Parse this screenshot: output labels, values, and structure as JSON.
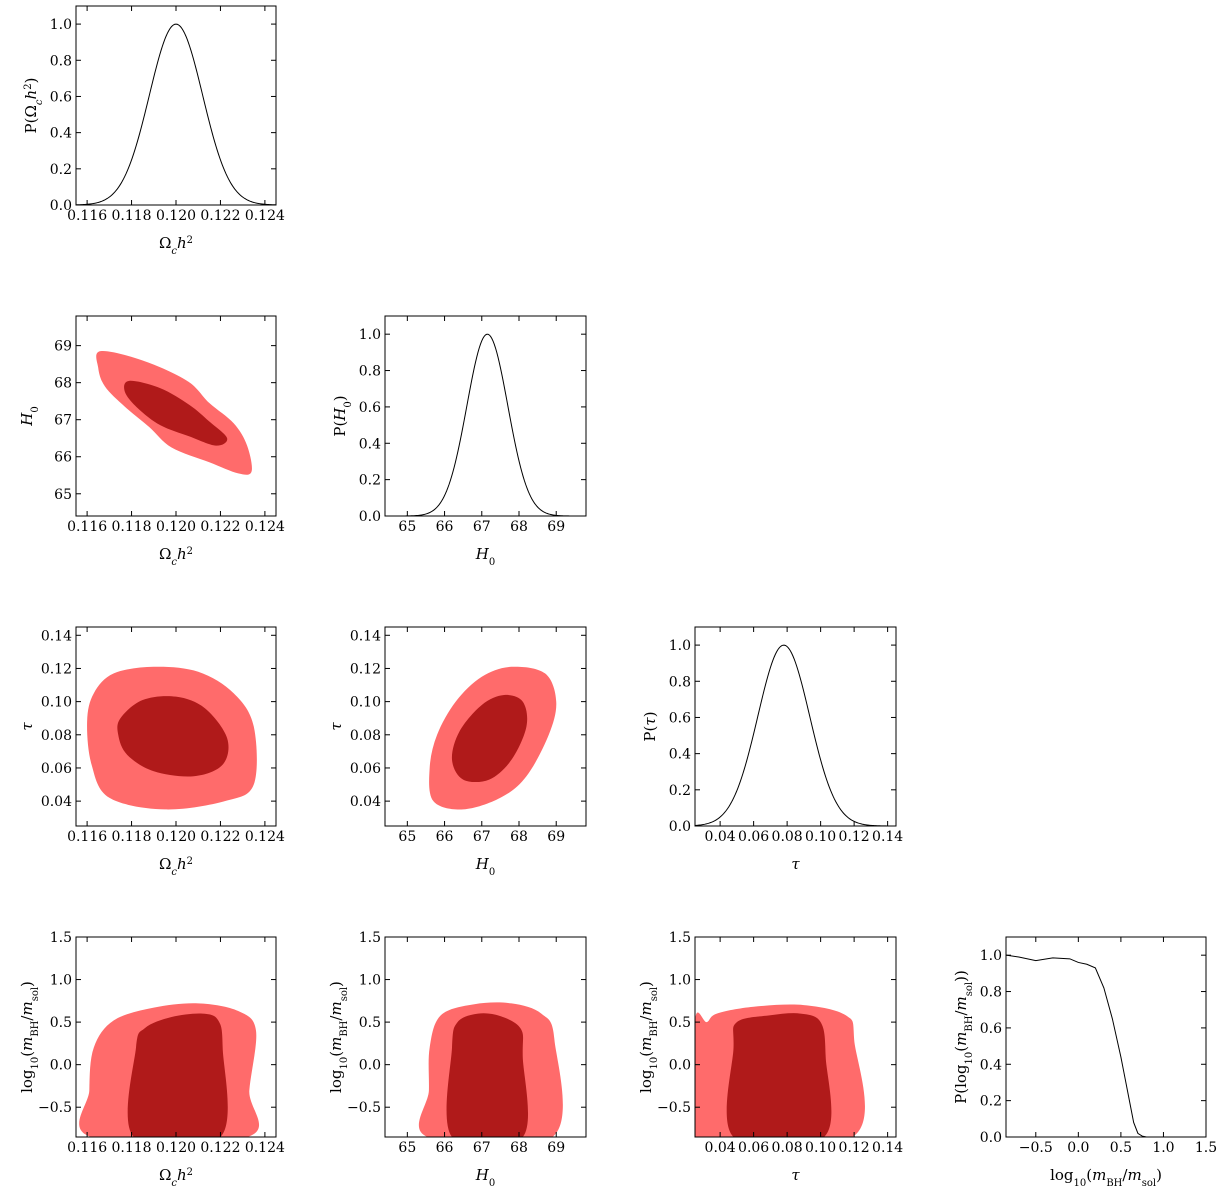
{
  "colors": {
    "sigma2": "#ff6b6b",
    "sigma1": "#b01a1a",
    "line": "#000000"
  },
  "params": {
    "omch2": {
      "label_html": "Ω<tspan font-style='italic'>c</tspan>",
      "range": [
        0.1155,
        0.1245
      ],
      "ticks": [
        0.116,
        0.118,
        0.12,
        0.122,
        0.124
      ],
      "tick_labels": [
        "0.116",
        "0.118",
        "0.120",
        "0.122",
        "0.124"
      ]
    },
    "H0": {
      "range": [
        64.4,
        69.8
      ],
      "ticks": [
        65,
        66,
        67,
        68,
        69
      ],
      "tick_labels": [
        "65",
        "66",
        "67",
        "68",
        "69"
      ]
    },
    "tau": {
      "range": [
        0.025,
        0.145
      ],
      "ticks": [
        0.04,
        0.06,
        0.08,
        0.1,
        0.12,
        0.14
      ],
      "tick_labels": [
        "0.04",
        "0.06",
        "0.08",
        "0.10",
        "0.12",
        "0.14"
      ]
    },
    "logm": {
      "range": [
        -0.85,
        1.5
      ],
      "ticks": [
        -0.5,
        0,
        0.5,
        1,
        1.5
      ],
      "tick_labels": [
        "−0.5",
        "0.0",
        "0.5",
        "1.0",
        "1.5"
      ]
    }
  },
  "labels": {
    "omch2": "Ωch2",
    "H0": "H0",
    "tau": "τ",
    "logm": "log10(mBH/msol)",
    "P_omch2": "P(Ωch2)",
    "P_H0": "P(H0)",
    "P_tau": "P(τ)",
    "P_logm": "P(log10(mBH/msol))"
  },
  "prob_axis": {
    "range": [
      0,
      1.1
    ],
    "ticks": [
      0,
      0.2,
      0.4,
      0.6,
      0.8,
      1.0
    ],
    "tick_labels": [
      "0.0",
      "0.2",
      "0.4",
      "0.6",
      "0.8",
      "1.0"
    ]
  },
  "chart_data": {
    "type": "corner",
    "marginals": [
      {
        "param": "omch2",
        "mean": 0.12,
        "sigma": 0.0012,
        "peak": 1.0
      },
      {
        "param": "H0",
        "mean": 67.15,
        "sigma": 0.55,
        "peak": 1.0
      },
      {
        "param": "tau",
        "mean": 0.078,
        "sigma": 0.0155,
        "peak": 1.0
      },
      {
        "param": "logm",
        "x": [
          -0.85,
          -0.7,
          -0.5,
          -0.3,
          -0.1,
          0.0,
          0.1,
          0.2,
          0.3,
          0.4,
          0.5,
          0.55,
          0.6,
          0.65,
          0.7,
          0.75,
          0.8
        ],
        "y": [
          1.0,
          0.99,
          0.97,
          0.985,
          0.98,
          0.96,
          0.95,
          0.93,
          0.82,
          0.65,
          0.44,
          0.32,
          0.2,
          0.08,
          0.02,
          0.005,
          0.0
        ]
      }
    ],
    "joint": [
      {
        "x": "omch2",
        "y": "H0",
        "outer": [
          [
            0.1166,
            68.85
          ],
          [
            0.1185,
            68.6
          ],
          [
            0.1205,
            68.05
          ],
          [
            0.1215,
            67.45
          ],
          [
            0.1226,
            66.9
          ],
          [
            0.1232,
            66.3
          ],
          [
            0.1234,
            65.6
          ],
          [
            0.1228,
            65.55
          ],
          [
            0.1215,
            65.85
          ],
          [
            0.1198,
            66.25
          ],
          [
            0.1188,
            66.8
          ],
          [
            0.1177,
            67.35
          ],
          [
            0.1168,
            67.9
          ],
          [
            0.1165,
            68.4
          ]
        ],
        "inner": [
          [
            0.1179,
            68.05
          ],
          [
            0.1193,
            67.85
          ],
          [
            0.1206,
            67.4
          ],
          [
            0.1215,
            66.95
          ],
          [
            0.1223,
            66.5
          ],
          [
            0.1218,
            66.3
          ],
          [
            0.1206,
            66.55
          ],
          [
            0.1193,
            66.85
          ],
          [
            0.1183,
            67.3
          ],
          [
            0.1177,
            67.75
          ]
        ]
      },
      {
        "x": "omch2",
        "y": "tau",
        "outer": [
          [
            0.1163,
            0.105
          ],
          [
            0.1172,
            0.117
          ],
          [
            0.119,
            0.121
          ],
          [
            0.121,
            0.118
          ],
          [
            0.1226,
            0.105
          ],
          [
            0.1235,
            0.085
          ],
          [
            0.1235,
            0.05
          ],
          [
            0.1222,
            0.04
          ],
          [
            0.1195,
            0.035
          ],
          [
            0.117,
            0.042
          ],
          [
            0.1162,
            0.062
          ],
          [
            0.116,
            0.088
          ]
        ],
        "inner": [
          [
            0.1175,
            0.09
          ],
          [
            0.1185,
            0.101
          ],
          [
            0.12,
            0.103
          ],
          [
            0.1213,
            0.096
          ],
          [
            0.1223,
            0.078
          ],
          [
            0.1221,
            0.062
          ],
          [
            0.1208,
            0.055
          ],
          [
            0.119,
            0.058
          ],
          [
            0.1178,
            0.068
          ],
          [
            0.1174,
            0.08
          ]
        ]
      },
      {
        "x": "H0",
        "y": "tau",
        "outer": [
          [
            65.6,
            0.06
          ],
          [
            65.8,
            0.08
          ],
          [
            66.3,
            0.1
          ],
          [
            67.0,
            0.115
          ],
          [
            67.8,
            0.121
          ],
          [
            68.7,
            0.117
          ],
          [
            69.0,
            0.1
          ],
          [
            68.8,
            0.08
          ],
          [
            68.2,
            0.055
          ],
          [
            67.5,
            0.042
          ],
          [
            66.5,
            0.035
          ],
          [
            65.7,
            0.04
          ]
        ],
        "inner": [
          [
            66.2,
            0.065
          ],
          [
            66.4,
            0.082
          ],
          [
            67.0,
            0.098
          ],
          [
            67.6,
            0.104
          ],
          [
            68.1,
            0.1
          ],
          [
            68.2,
            0.085
          ],
          [
            67.8,
            0.065
          ],
          [
            67.2,
            0.053
          ],
          [
            66.5,
            0.053
          ]
        ]
      },
      {
        "x": "omch2",
        "y": "logm",
        "outer": [
          [
            0.1162,
            -0.85
          ],
          [
            0.1161,
            -0.3
          ],
          [
            0.1163,
            0.2
          ],
          [
            0.1172,
            0.52
          ],
          [
            0.119,
            0.67
          ],
          [
            0.121,
            0.72
          ],
          [
            0.1228,
            0.63
          ],
          [
            0.1236,
            0.4
          ],
          [
            0.1233,
            -0.3
          ],
          [
            0.1232,
            -0.85
          ]
        ],
        "inner": [
          [
            0.1181,
            -0.85
          ],
          [
            0.1182,
            0.2
          ],
          [
            0.1186,
            0.43
          ],
          [
            0.1198,
            0.56
          ],
          [
            0.1212,
            0.6
          ],
          [
            0.1219,
            0.52
          ],
          [
            0.1221,
            0.2
          ],
          [
            0.122,
            -0.85
          ]
        ]
      },
      {
        "x": "H0",
        "y": "logm",
        "outer": [
          [
            65.55,
            -0.85
          ],
          [
            65.58,
            -0.3
          ],
          [
            65.6,
            0.2
          ],
          [
            65.9,
            0.58
          ],
          [
            66.8,
            0.71
          ],
          [
            67.8,
            0.72
          ],
          [
            68.6,
            0.6
          ],
          [
            68.95,
            0.3
          ],
          [
            68.9,
            -0.85
          ]
        ],
        "inner": [
          [
            66.2,
            -0.85
          ],
          [
            66.2,
            0.2
          ],
          [
            66.35,
            0.5
          ],
          [
            66.9,
            0.6
          ],
          [
            67.5,
            0.57
          ],
          [
            68.05,
            0.42
          ],
          [
            68.1,
            0.1
          ],
          [
            68.1,
            -0.85
          ]
        ]
      },
      {
        "x": "tau",
        "y": "logm",
        "outer": [
          [
            0.025,
            -0.85
          ],
          [
            0.025,
            0.52
          ],
          [
            0.032,
            0.5
          ],
          [
            0.038,
            0.6
          ],
          [
            0.06,
            0.68
          ],
          [
            0.09,
            0.7
          ],
          [
            0.115,
            0.58
          ],
          [
            0.12,
            0.3
          ],
          [
            0.119,
            -0.85
          ]
        ],
        "inner": [
          [
            0.048,
            -0.85
          ],
          [
            0.048,
            0.2
          ],
          [
            0.05,
            0.5
          ],
          [
            0.07,
            0.58
          ],
          [
            0.088,
            0.6
          ],
          [
            0.1,
            0.5
          ],
          [
            0.103,
            0.1
          ],
          [
            0.102,
            -0.85
          ]
        ]
      }
    ]
  }
}
